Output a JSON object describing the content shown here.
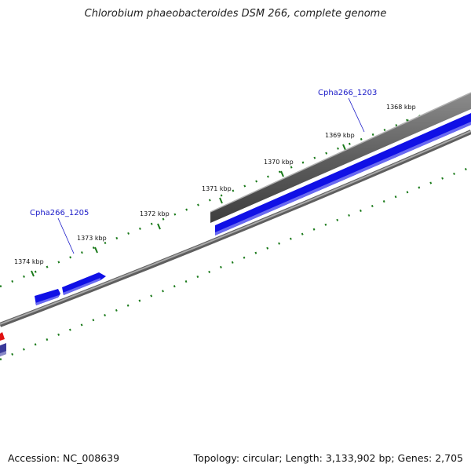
{
  "title": "Chlorobium phaeobacteroides DSM 266, complete genome",
  "footer": {
    "accession": "Accession: NC_008639",
    "stats": "Topology: circular; Length: 3,133,902 bp; Genes: 2,705"
  },
  "ruler_labels": [
    "1368 kbp",
    "1369 kbp",
    "1370 kbp",
    "1371 kbp",
    "1372 kbp",
    "1373 kbp",
    "1374 kbp"
  ],
  "gene_labels": [
    "Cpha266_1203",
    "Cpha266_1205"
  ],
  "colors": {
    "forward_gene": "#1010e6",
    "reverse_gene": "#e01010",
    "rna_gene": "#555555",
    "backbone": "#8a8a8a",
    "tick": "#1a7a1a",
    "label": "#1a1ac8"
  }
}
